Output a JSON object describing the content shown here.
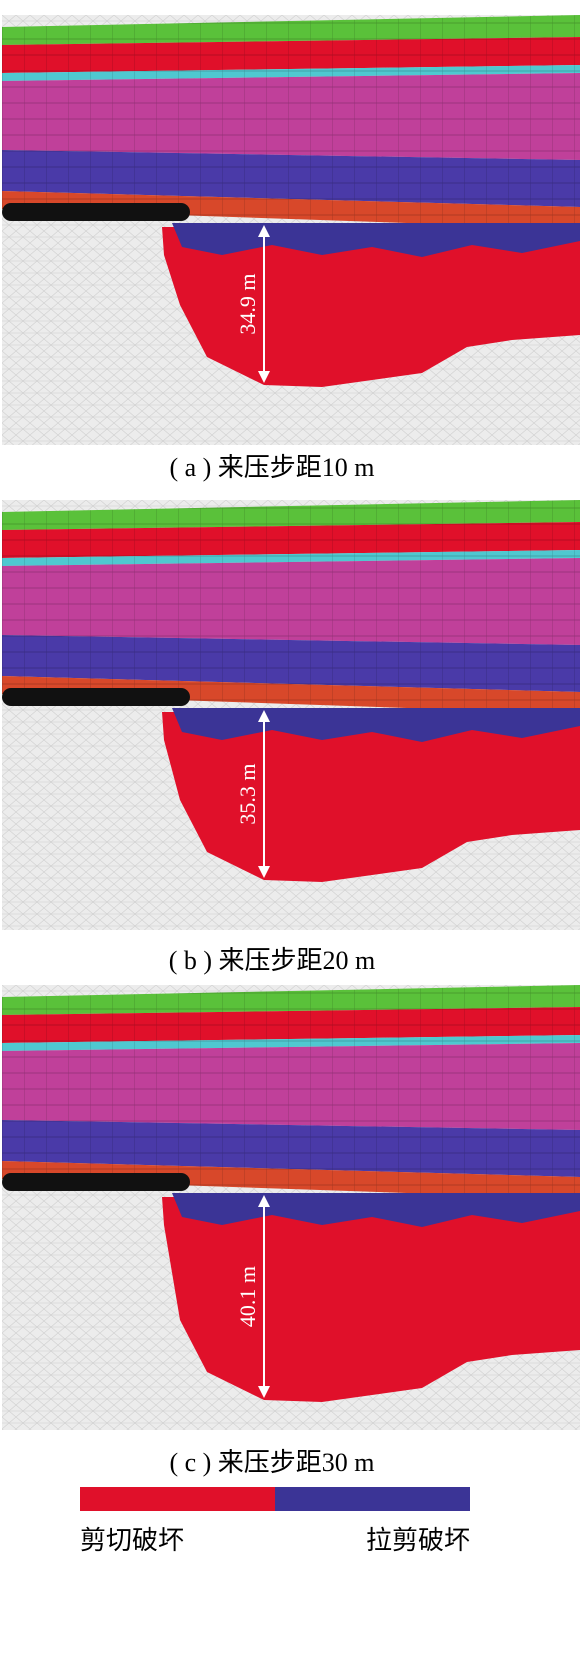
{
  "panels": [
    {
      "caption": "( a ) 来压步距10 m",
      "height_label": "34.9 m"
    },
    {
      "caption": "( b ) 来压步距20 m",
      "height_label": "35.3 m"
    },
    {
      "caption": "( c ) 来压步距30 m",
      "height_label": "40.1 m"
    }
  ],
  "legend": [
    {
      "label": "剪切破坏",
      "color": "#e0102a"
    },
    {
      "label": "拉剪破坏",
      "color": "#3b3496"
    }
  ]
}
